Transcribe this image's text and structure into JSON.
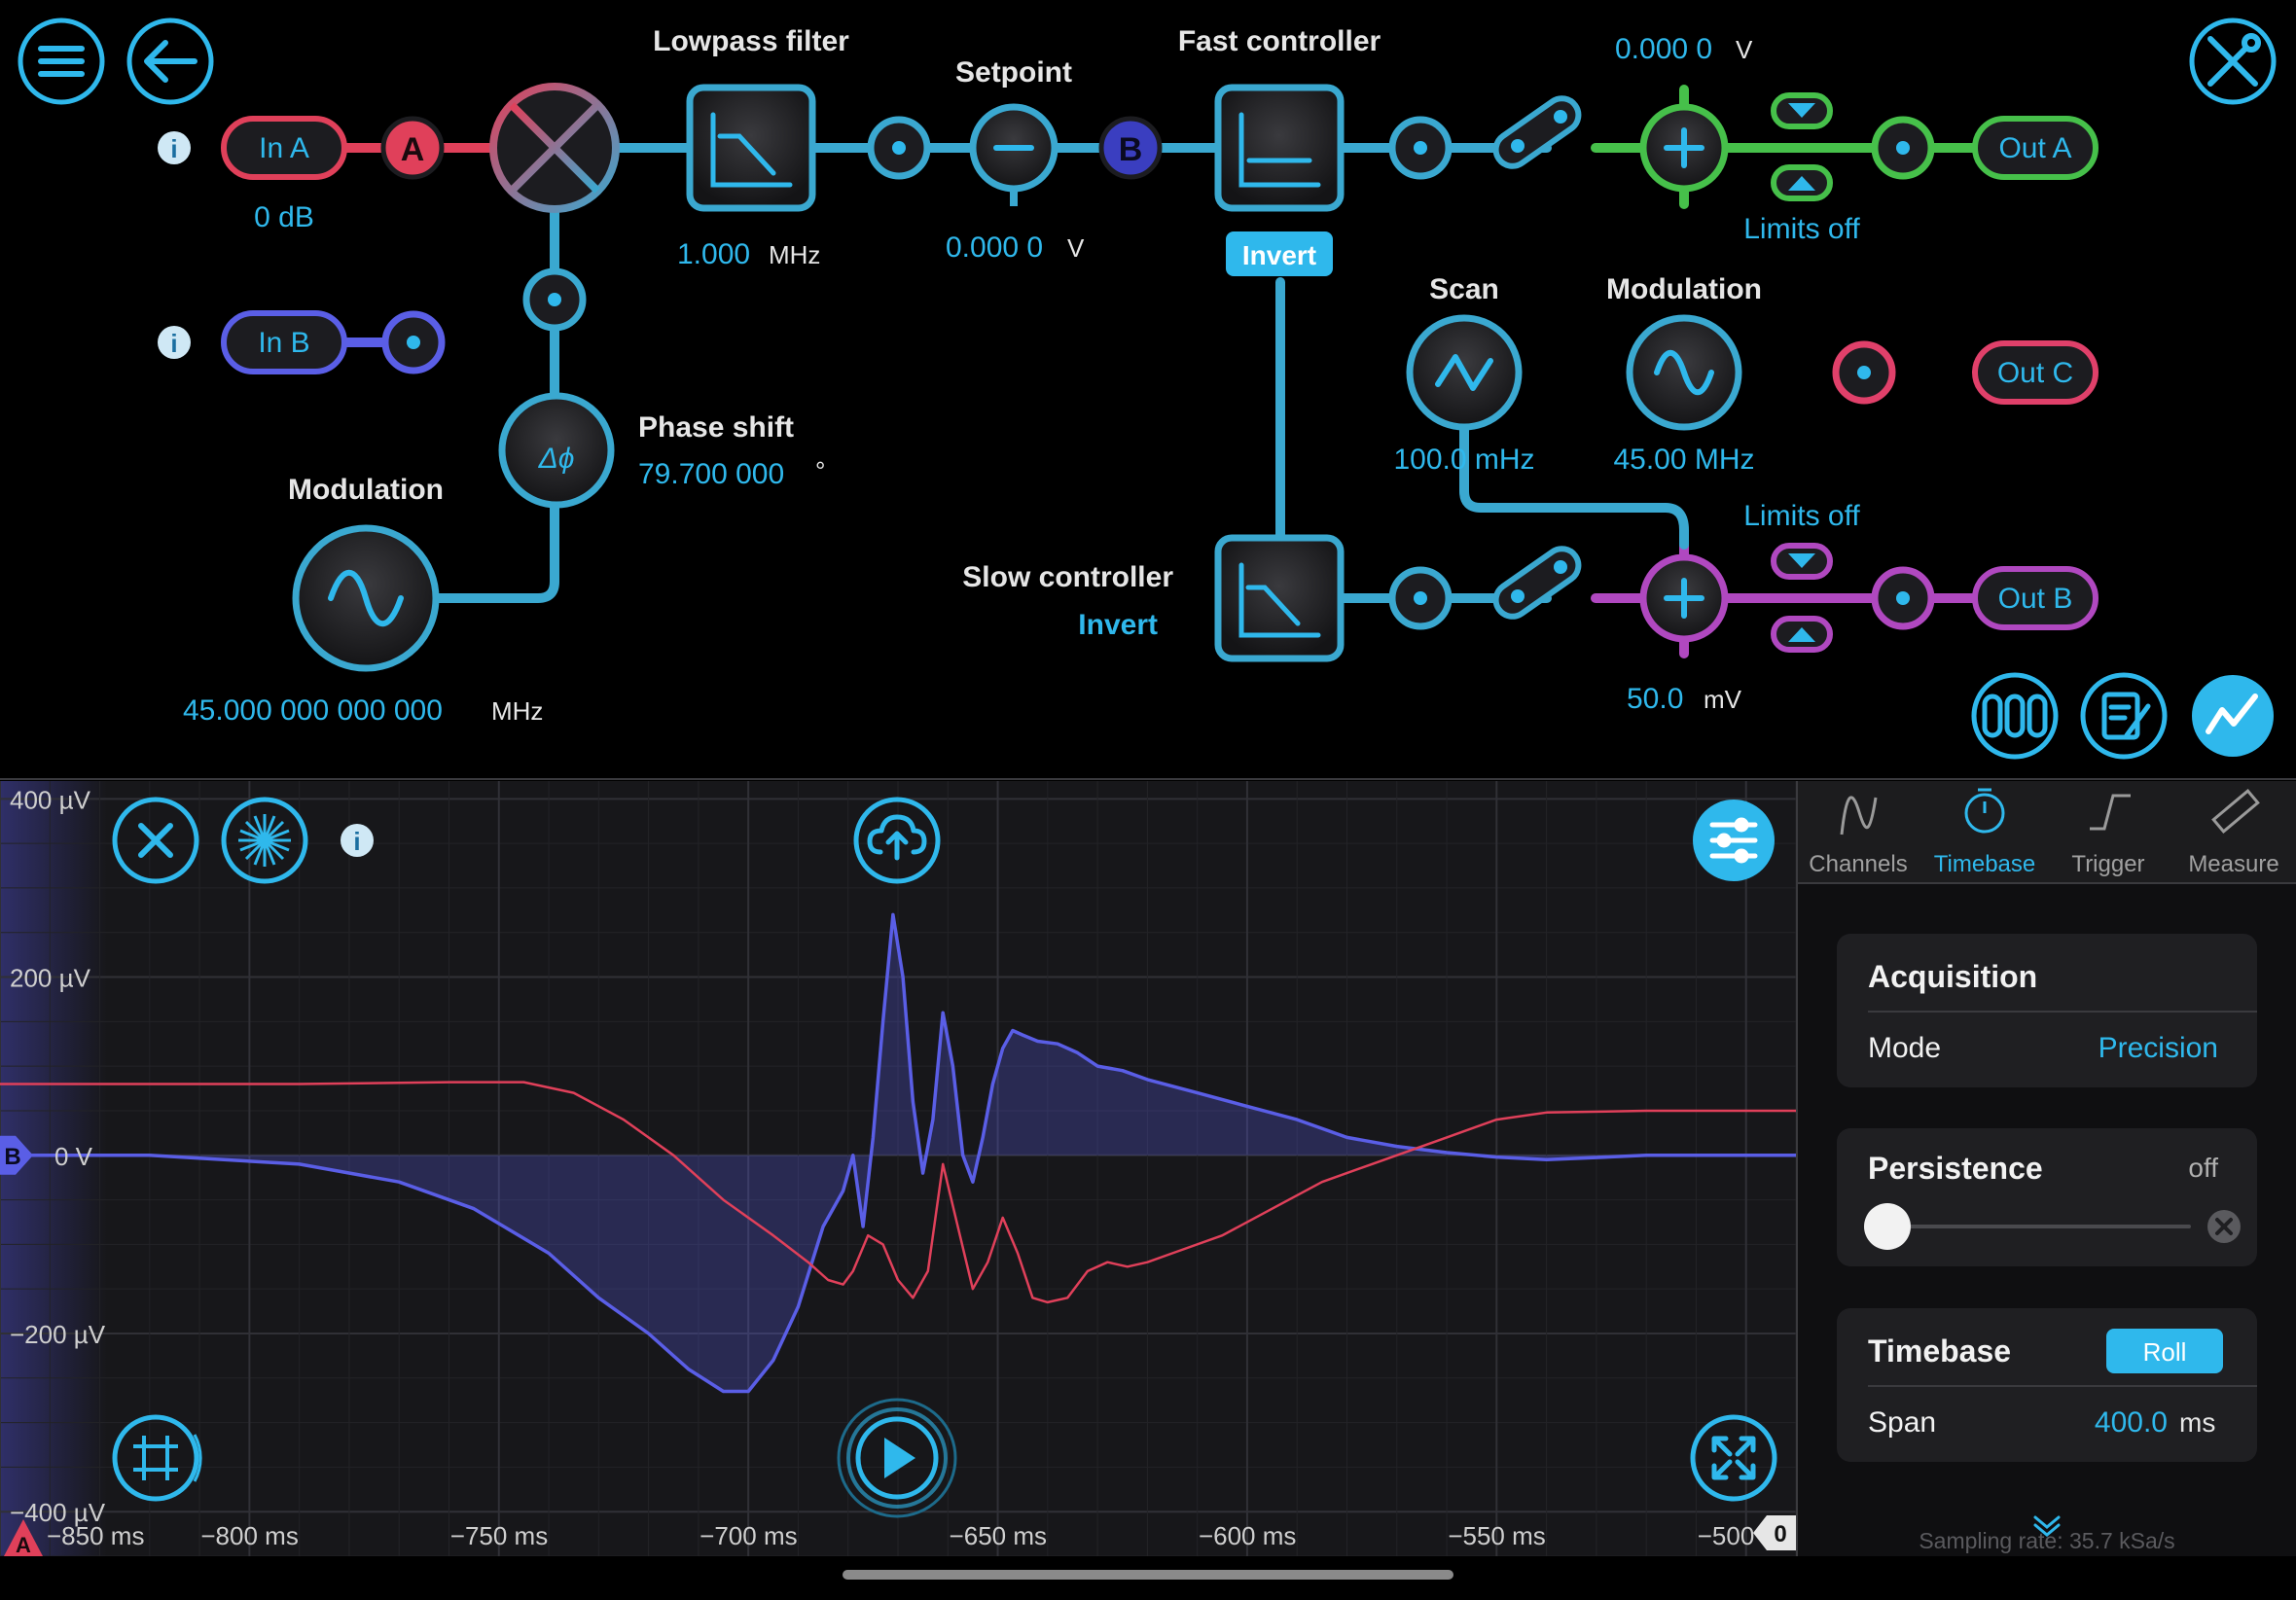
{
  "colors": {
    "accent": "#2fb8ec",
    "chA": "#e0405a",
    "chB": "#5a5ee6",
    "green": "#46c04a",
    "magenta": "#b048c0",
    "panel": "#1a1a1c"
  },
  "pipeline": {
    "in_a": {
      "label": "In A",
      "gain": "0 dB"
    },
    "in_b": {
      "label": "In B"
    },
    "badge_a": "A",
    "badge_b": "B",
    "lowpass": {
      "title": "Lowpass filter",
      "value": "1.000",
      "unit": "MHz"
    },
    "setpoint": {
      "title": "Setpoint",
      "value": "0.000 0",
      "unit": "V"
    },
    "fast_controller": {
      "title": "Fast controller",
      "invert": "Invert"
    },
    "slow_controller": {
      "title": "Slow controller",
      "invert": "Invert"
    },
    "phase_shift": {
      "title": "Phase shift",
      "value": "79.700 000",
      "unit": "°",
      "symbol": "Δϕ"
    },
    "modulation_left": {
      "title": "Modulation",
      "value": "45.000 000 000 000",
      "unit": "MHz"
    },
    "scan": {
      "title": "Scan",
      "value": "100.0 mHz"
    },
    "modulation_right": {
      "title": "Modulation",
      "value": "45.00 MHz"
    },
    "offset_a": {
      "value": "0.000 0",
      "unit": "V"
    },
    "offset_b": {
      "value": "50.0",
      "unit": "mV"
    },
    "limits_a": "Limits off",
    "limits_b": "Limits off",
    "out_a": "Out A",
    "out_b": "Out B",
    "out_c": "Out C",
    "icons": [
      "menu-icon",
      "back-icon",
      "tools-icon",
      "info-icon",
      "mixer-icon",
      "counter-icon",
      "notes-icon",
      "trend-icon"
    ]
  },
  "scope": {
    "y_tick_labels": [
      "400 µV",
      "200 µV",
      "0 V",
      "−200 µV",
      "−400 µV"
    ],
    "x_tick_labels": [
      "−850 ms",
      "−800 ms",
      "−750 ms",
      "−700 ms",
      "−650 ms",
      "−600 ms",
      "−550 ms",
      "−500 ms"
    ],
    "marker_a": "A",
    "marker_b": "B",
    "marker_zero": "0",
    "icons": [
      "close-icon",
      "burst-icon",
      "info-icon",
      "cloud-upload-icon",
      "sliders-icon",
      "grid-icon",
      "play-icon",
      "expand-icon"
    ]
  },
  "chart_data": {
    "type": "line",
    "xlabel": "",
    "ylabel": "",
    "xlim": [
      -850,
      -490
    ],
    "ylim": [
      -450,
      420
    ],
    "x_unit": "ms",
    "y_unit": "µV",
    "grid": true,
    "series": [
      {
        "color": "#5a5ee6",
        "filled": true,
        "x": [
          -850,
          -820,
          -790,
          -770,
          -755,
          -740,
          -730,
          -720,
          -712,
          -705,
          -700,
          -695,
          -690,
          -685,
          -681,
          -679,
          -677,
          -675,
          -673,
          -671,
          -669,
          -667,
          -665,
          -663,
          -661,
          -659,
          -657,
          -655,
          -653,
          -651,
          -649,
          -647,
          -645,
          -642,
          -638,
          -634,
          -630,
          -625,
          -620,
          -610,
          -600,
          -590,
          -580,
          -570,
          -560,
          -550,
          -540,
          -520,
          -500,
          -490
        ],
        "y": [
          0,
          0,
          -10,
          -30,
          -60,
          -110,
          -160,
          -200,
          -240,
          -265,
          -265,
          -230,
          -170,
          -80,
          -40,
          0,
          -80,
          20,
          150,
          270,
          200,
          60,
          -20,
          40,
          160,
          100,
          0,
          -30,
          20,
          80,
          120,
          140,
          135,
          128,
          125,
          115,
          100,
          95,
          85,
          70,
          55,
          40,
          20,
          10,
          3,
          -2,
          -5,
          0,
          0,
          0
        ]
      },
      {
        "color": "#e0405a",
        "filled": false,
        "x": [
          -850,
          -820,
          -790,
          -760,
          -745,
          -735,
          -725,
          -715,
          -705,
          -695,
          -688,
          -684,
          -681,
          -679,
          -676,
          -673,
          -670,
          -667,
          -664,
          -661,
          -658,
          -655,
          -652,
          -649,
          -646,
          -643,
          -640,
          -636,
          -632,
          -628,
          -624,
          -620,
          -615,
          -605,
          -595,
          -585,
          -575,
          -560,
          -550,
          -540,
          -520,
          -500,
          -490
        ],
        "y": [
          80,
          80,
          80,
          82,
          82,
          70,
          40,
          0,
          -50,
          -90,
          -120,
          -140,
          -145,
          -130,
          -90,
          -100,
          -140,
          -160,
          -130,
          -10,
          -80,
          -150,
          -120,
          -70,
          -110,
          -160,
          -165,
          -160,
          -130,
          -120,
          -125,
          -120,
          -110,
          -90,
          -60,
          -30,
          -10,
          20,
          40,
          48,
          50,
          50,
          50
        ]
      }
    ]
  },
  "side_panel": {
    "tabs": [
      {
        "label": "Channels",
        "active": false
      },
      {
        "label": "Timebase",
        "active": true
      },
      {
        "label": "Trigger",
        "active": false
      },
      {
        "label": "Measure",
        "active": false
      }
    ],
    "acquisition": {
      "title": "Acquisition",
      "mode_label": "Mode",
      "mode_value": "Precision"
    },
    "persistence": {
      "title": "Persistence",
      "state": "off",
      "level": 0
    },
    "timebase": {
      "title": "Timebase",
      "roll_label": "Roll",
      "span_label": "Span",
      "span_value": "400.0",
      "span_unit": "ms"
    },
    "sampling_rate": "Sampling rate: 35.7 kSa/s"
  }
}
